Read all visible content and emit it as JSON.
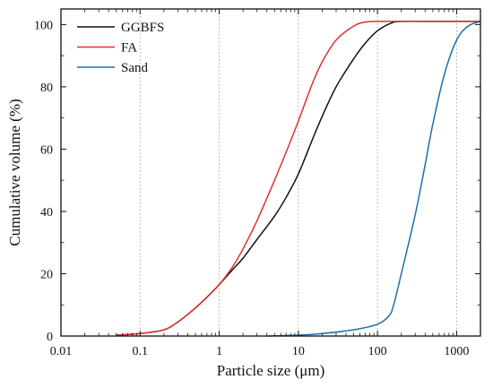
{
  "chart_data": {
    "type": "line",
    "xlabel": "Particle size (μm)",
    "ylabel": "Cumulative volume (%)",
    "x_scale": "log",
    "xlim": [
      0.01,
      2000
    ],
    "ylim": [
      0,
      105
    ],
    "x_ticks": [
      0.01,
      0.1,
      1,
      10,
      100,
      1000
    ],
    "x_tick_labels": [
      "0.01",
      "0.1",
      "1",
      "10",
      "100",
      "1000"
    ],
    "y_ticks": [
      0,
      20,
      40,
      60,
      80,
      100
    ],
    "y_tick_labels": [
      "0",
      "20",
      "40",
      "60",
      "80",
      "100"
    ],
    "grid": "vertical-dotted",
    "legend_position": "top-left",
    "series": [
      {
        "name": "GGBFS",
        "color": "#111111",
        "x": [
          0.05,
          0.1,
          0.2,
          0.3,
          0.5,
          0.7,
          1,
          1.5,
          2,
          3,
          5,
          7,
          10,
          15,
          20,
          30,
          50,
          70,
          100,
          150,
          200,
          500,
          1000,
          2000
        ],
        "y": [
          0.3,
          0.8,
          2,
          4.5,
          9,
          12.5,
          16.5,
          21.5,
          25,
          31,
          38.5,
          44.5,
          52,
          63,
          70.5,
          80,
          89,
          94,
          98,
          100.5,
          101,
          101,
          101,
          101
        ]
      },
      {
        "name": "FA",
        "color": "#e03030",
        "x": [
          0.05,
          0.1,
          0.2,
          0.3,
          0.5,
          0.7,
          1,
          1.5,
          2,
          3,
          5,
          7,
          10,
          15,
          20,
          30,
          50,
          70,
          100,
          200,
          500,
          1000,
          2000
        ],
        "y": [
          0.3,
          0.8,
          2,
          4.5,
          9,
          12.5,
          16.5,
          22.5,
          28,
          37,
          50,
          59,
          69,
          81,
          88,
          95,
          99.5,
          100.8,
          101,
          101,
          101,
          101,
          101
        ]
      },
      {
        "name": "Sand",
        "color": "#1f6fae",
        "x": [
          4,
          10,
          20,
          50,
          100,
          140,
          160,
          200,
          300,
          400,
          500,
          700,
          1000,
          1400,
          2000
        ],
        "y": [
          0,
          0.3,
          0.8,
          2,
          3.8,
          6.5,
          10,
          20,
          39,
          55,
          68,
          84,
          95,
          99.5,
          101
        ]
      }
    ]
  }
}
